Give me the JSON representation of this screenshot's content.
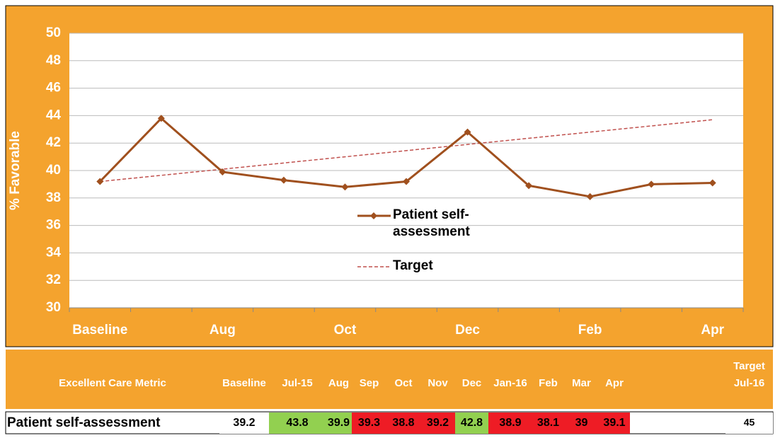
{
  "chart_data": {
    "type": "line",
    "y_label": "% Favorable",
    "categories": [
      "Baseline",
      null,
      "Aug",
      null,
      "Oct",
      null,
      "Dec",
      null,
      "Feb",
      null,
      "Apr"
    ],
    "series": [
      {
        "name": "Patient self-assessment",
        "color": "#a0501e",
        "values": [
          39.2,
          43.8,
          39.9,
          39.3,
          38.8,
          39.2,
          42.8,
          38.9,
          38.1,
          39,
          39.1
        ]
      },
      {
        "name": "Target",
        "color": "#c0504d",
        "dashed": true,
        "values": [
          39.2,
          39.65,
          40.1,
          40.55,
          41,
          41.45,
          41.9,
          42.35,
          42.8,
          43.25,
          43.7
        ]
      }
    ],
    "ylim": [
      30,
      50
    ],
    "yticks": [
      30,
      32,
      34,
      36,
      38,
      40,
      42,
      44,
      46,
      48,
      50
    ],
    "grid": true,
    "background": "#f4a32e"
  },
  "table": {
    "header": [
      "Excellent Care Metric",
      "Baseline",
      "Jul-15",
      "Aug",
      "Sep",
      "Oct",
      "Nov",
      "Dec",
      "Jan-16",
      "Feb",
      "Mar",
      "Apr",
      "Target Jul-16"
    ],
    "rows": [
      {
        "label": "Patient self-assessment",
        "values": [
          39.2,
          43.8,
          39.9,
          39.3,
          38.8,
          39.2,
          42.8,
          38.9,
          38.1,
          39,
          39.1,
          45
        ],
        "colors": [
          "#ffffff",
          "#92d050",
          "#92d050",
          "#ee1c25",
          "#ee1c25",
          "#ee1c25",
          "#92d050",
          "#ee1c25",
          "#ee1c25",
          "#ee1c25",
          "#ee1c25",
          "#ffffff"
        ]
      }
    ]
  }
}
